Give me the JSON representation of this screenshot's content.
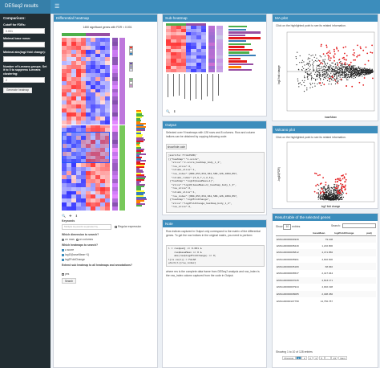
{
  "app": {
    "title": "DESeq2 results"
  },
  "sidebar": {
    "comparison_label": "Comparison:",
    "cutoff_label": "Cutoff for FDRs:",
    "cutoff_value": "0.001",
    "base_mean_label": "Minimal base mean:",
    "base_mean_value": "",
    "log2fc_label": "Minimal abs(log2 fold change):",
    "log2fc_value": "",
    "kmeans_label": "Number of k-means groups. Set it to 0 to suppress k-means clustering:",
    "kmeans_value": "2",
    "generate_button": "Generate heatmap"
  },
  "diff_heatmap": {
    "title": "Differential heatmap",
    "plot_title": "1450 significant genes with FDR < 0.001",
    "keywords_label": "Keywords",
    "keywords_placeholder": "Multiple keywords separated by ,",
    "regex_label": "Regular expression",
    "dimension_label": "Which dimension to search?",
    "dim_row": "on rows",
    "dim_col": "on columns",
    "heatmap_label": "Which heatmaps to search?",
    "hm1": "z-score",
    "hm2": "log10(baseMean+1)",
    "hm3": "log2FoldChange",
    "extend_label": "Extend sub heatmap to all heatmaps and annotations?",
    "extend_yes": "yes",
    "search_button": "Search"
  },
  "sub_heatmap": {
    "title": "Sub-heatmap"
  },
  "output": {
    "title": "Output",
    "description": "Selected over 9 heatmaps with 128 rows and 8 columns. Row and column indices can be obtained by copying following code:",
    "show_hide": "show/hide code",
    "code_lines": [
      "jsonlite::fromJSON('",
      "[{\"heatmap\":\"z-score\",",
      "  \"slice\":\"z-score_heatmap_body_1_2\",",
      "  \"row_slice\":2,",
      "  \"column_slice\":1,",
      "  \"row_index\":[884,653,654,661,586,126,1004,857,",
      "  \"column_index\":[5,6,7,1,2,3]},",
      " {\"heatmap\":\"log10(baseMean+1)\",",
      "  \"slice\":\"log10(baseMean+1)_heatmap_body_1_2\",",
      "  \"row_slice\":2,",
      "  \"column_slice\":1,",
      "  \"row_index\":[884,653,654,661,586,126,1004,857,",
      " {\"heatmap\":\"log2FoldChange\",",
      "  \"slice\":\"log2FoldChange_heatmap_body_1_2\",",
      "  \"row_slice\":2,"
    ]
  },
  "note": {
    "title": "Note",
    "text": "Row indices captured in Output only correspond to the matrix of the differential genes. To get the row indices in the original matrix, you need to perform:",
    "code_lines": [
      "l = res$padj <= 0.001 &",
      "    res$baseMean >= 0 &",
      "    abs(res$log2FoldChange) >= 0;",
      "l[is.na(l)] = FALSE",
      "which(l)[row_index]"
    ],
    "footnote": "where res is the complete data frame from DESeq2 analysis and row_index is the row_index column captured from the code in Output."
  },
  "ma_plot": {
    "title": "MA-plot",
    "hint": "Click on the highlighted point to see its related information.",
    "xlabel": "baseMean",
    "ylabel": "log2 fold change"
  },
  "volcano_plot": {
    "title": "Volcano plot",
    "hint": "Click on the highlighted point to see its related information.",
    "xlabel": "log2 fold change",
    "ylabel": "-log10(FDR)"
  },
  "result_table": {
    "title": "Result table of the selected genes",
    "show_label": "Show",
    "entries_value": "10",
    "entries_label": "entries",
    "search_label": "Search:",
    "columns": [
      "",
      "baseMean",
      "log2FoldChange",
      "padj"
    ],
    "rows": [
      [
        "ENSG00000004939",
        "79.108",
        "",
        ""
      ],
      [
        "ENSG00000005249",
        "1,210.800",
        "",
        ""
      ],
      [
        "ENSG00000005812",
        "4,471.856",
        "",
        ""
      ],
      [
        "ENSG00000005961",
        "4,810.600",
        "",
        ""
      ],
      [
        "ENSG00000005189",
        "68.840",
        "",
        ""
      ],
      [
        "ENSG00000006537",
        "2,417.044",
        "",
        ""
      ],
      [
        "ENSG00000007045",
        "4,813.171",
        "",
        ""
      ],
      [
        "ENSG00000007944",
        "4,002.198",
        "",
        ""
      ],
      [
        "ENSG00000008085",
        "2,408.450",
        "",
        ""
      ],
      [
        "ENSG00000107758",
        "14,756.787",
        "",
        ""
      ]
    ],
    "info": "Showing 1 to 10 of 128 entries",
    "pager": [
      "Previous",
      "1",
      "2",
      "3",
      "4",
      "5",
      "...",
      "13",
      "Next"
    ]
  },
  "colors": {
    "header": "#3c8dbc",
    "sidebar": "#222d32",
    "brand": "#367fa9"
  },
  "icons": [
    "hamburger-icon",
    "search-icon",
    "pin-icon",
    "download-icon"
  ]
}
